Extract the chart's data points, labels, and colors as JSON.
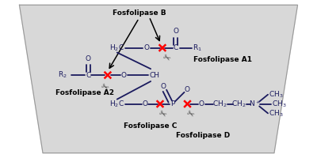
{
  "figsize": [
    4.0,
    2.0
  ],
  "dpi": 100,
  "bg_color": "#d8d8d8",
  "line_color": "#1a1a5e",
  "red_color": "#ff0000",
  "black": "#000000",
  "label_fs": 6.5,
  "mol_fs": 6.5,
  "labels": {
    "A": "Fosfolipase B",
    "B": "Fosfolipase A1",
    "C": "Fosfolipase A2",
    "D": "Fosfolipase C",
    "E": "Fosfolipase D"
  }
}
